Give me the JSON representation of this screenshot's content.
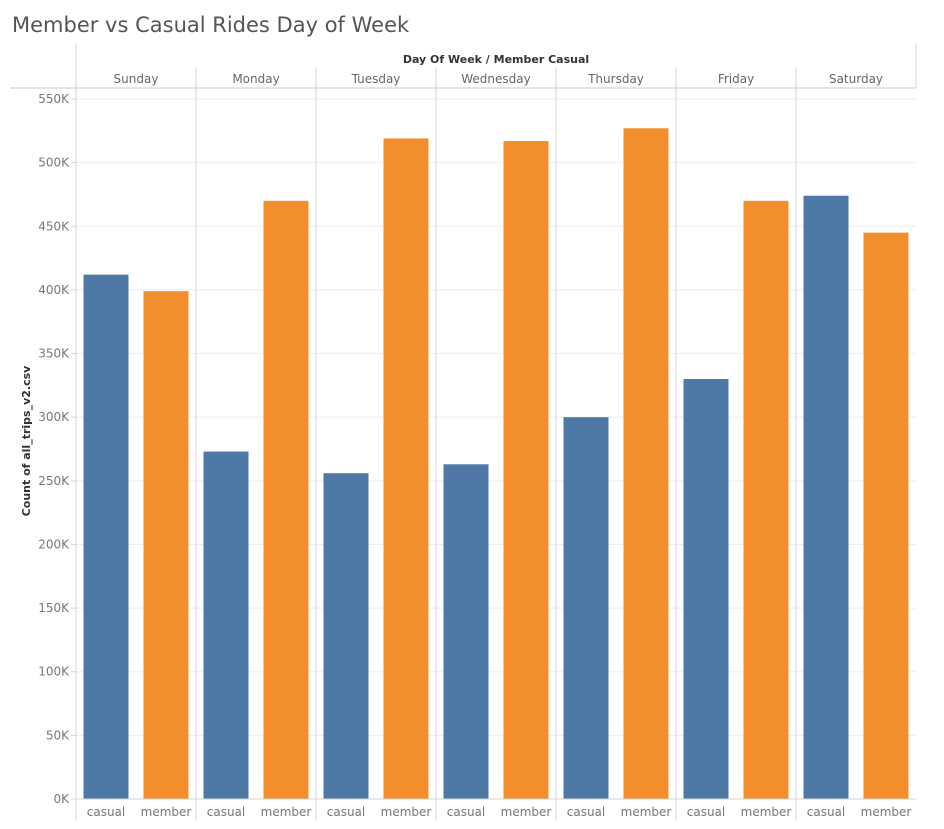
{
  "chart_data": {
    "type": "bar",
    "title": "Member vs Casual Rides Day of Week",
    "column_header": "Day Of Week / Member Casual",
    "ylabel": "Count of all_trips_v2.csv",
    "ylim": [
      0,
      550000
    ],
    "y_ticks": [
      "0K",
      "50K",
      "100K",
      "150K",
      "200K",
      "250K",
      "300K",
      "350K",
      "400K",
      "450K",
      "500K",
      "550K"
    ],
    "groups": [
      "Sunday",
      "Monday",
      "Tuesday",
      "Wednesday",
      "Thursday",
      "Friday",
      "Saturday"
    ],
    "sub_categories": [
      "casual",
      "member"
    ],
    "series": [
      {
        "values": [
          412000,
          273000,
          256000,
          263000,
          300000,
          330000,
          474000
        ],
        "color": "#4e79a7"
      },
      {
        "values": [
          399000,
          470000,
          519000,
          517000,
          527000,
          470000,
          445000
        ],
        "color": "#f28e2b"
      }
    ],
    "grid": true
  }
}
